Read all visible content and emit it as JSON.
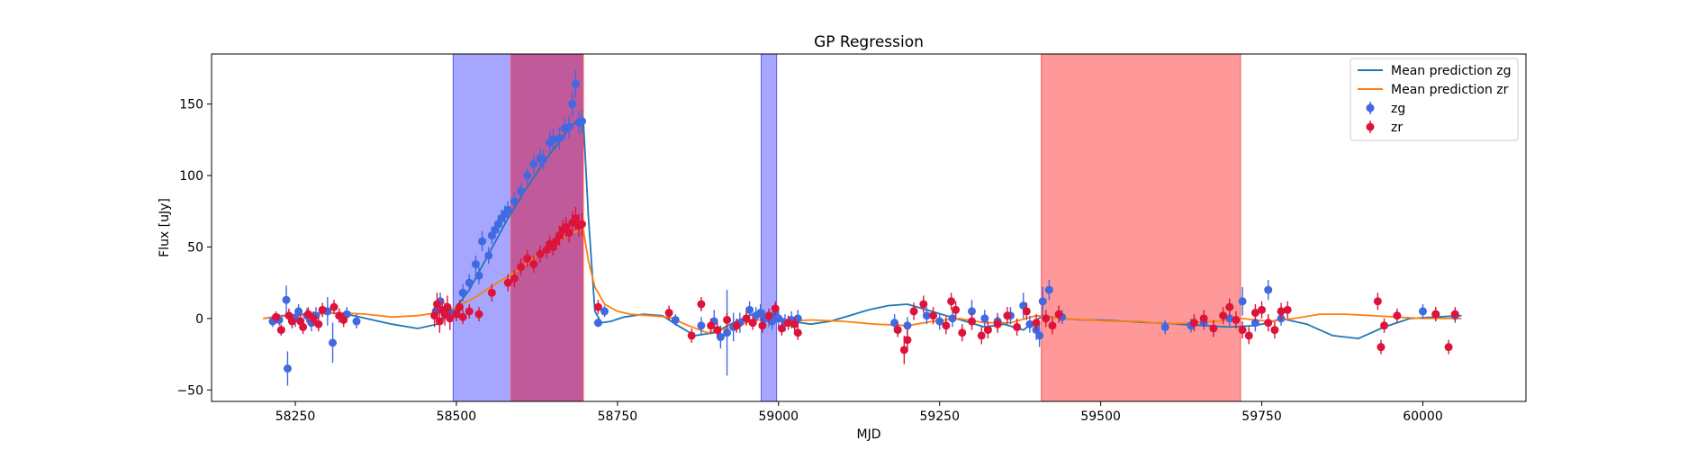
{
  "chart_data": {
    "type": "scatter",
    "title": "GP Regression",
    "xlabel": "MJD",
    "ylabel": "Flux [uJy]",
    "xlim": [
      58120,
      60160
    ],
    "ylim": [
      -58,
      185
    ],
    "xticks": [
      58250,
      58500,
      58750,
      59000,
      59250,
      59500,
      59750,
      60000
    ],
    "yticks": [
      -50,
      0,
      50,
      100,
      150
    ],
    "grid": false,
    "legend_position": "top-right",
    "legend": [
      "Mean prediction zg",
      "Mean prediction zr",
      "zg",
      "zr"
    ],
    "spans": [
      {
        "color": "blue",
        "x0": 58495,
        "x1": 58585
      },
      {
        "color": "red",
        "x0": 58585,
        "x1": 58697
      },
      {
        "color": "blue",
        "x0": 58973,
        "x1": 58997
      },
      {
        "color": "red",
        "x0": 59408,
        "x1": 59717
      }
    ],
    "series": [
      {
        "name": "Mean prediction zg",
        "kind": "line",
        "color": "#1f77b4",
        "x": [
          58200,
          58230,
          58260,
          58300,
          58330,
          58360,
          58400,
          58440,
          58470,
          58495,
          58520,
          58550,
          58580,
          58610,
          58640,
          58670,
          58690,
          58697,
          58705,
          58715,
          58725,
          58740,
          58760,
          58790,
          58820,
          58840,
          58870,
          58900,
          58930,
          58960,
          58990,
          59020,
          59050,
          59080,
          59110,
          59140,
          59170,
          59200,
          59230,
          59260,
          59290,
          59320,
          59350,
          59380,
          59410,
          59440,
          59470,
          59500,
          59540,
          59580,
          59620,
          59660,
          59700,
          59740,
          59760,
          59780,
          59820,
          59860,
          59900,
          59940,
          59980,
          60020,
          60060
        ],
        "y": [
          0,
          2,
          3,
          4,
          3,
          0,
          -4,
          -7,
          -4,
          5,
          20,
          45,
          70,
          92,
          112,
          130,
          140,
          138,
          70,
          5,
          -3,
          -2,
          1,
          3,
          2,
          -4,
          -12,
          -10,
          -3,
          3,
          2,
          -2,
          -4,
          -2,
          2,
          6,
          9,
          10,
          6,
          2,
          -2,
          -6,
          -4,
          -8,
          2,
          0,
          -1,
          -1,
          -2,
          -3,
          -4,
          -5,
          -6,
          -5,
          -3,
          0,
          -4,
          -12,
          -14,
          -6,
          0,
          1,
          2
        ]
      },
      {
        "name": "Mean prediction zr",
        "kind": "line",
        "color": "#ff7f0e",
        "x": [
          58200,
          58240,
          58280,
          58320,
          58360,
          58400,
          58440,
          58470,
          58500,
          58530,
          58560,
          58590,
          58620,
          58650,
          58680,
          58697,
          58705,
          58715,
          58730,
          58750,
          58770,
          58800,
          58830,
          58860,
          58890,
          58920,
          58950,
          58980,
          59010,
          59050,
          59100,
          59150,
          59200,
          59240,
          59280,
          59320,
          59360,
          59400,
          59440,
          59480,
          59520,
          59560,
          59600,
          59640,
          59680,
          59720,
          59760,
          59800,
          59840,
          59880,
          59920,
          59960,
          60000,
          60040,
          60060
        ],
        "y": [
          0,
          2,
          3,
          4,
          3,
          1,
          2,
          4,
          8,
          15,
          24,
          32,
          42,
          52,
          60,
          62,
          40,
          22,
          10,
          5,
          3,
          2,
          1,
          -5,
          -10,
          -7,
          -3,
          0,
          -2,
          -1,
          -2,
          -4,
          -5,
          -2,
          0,
          -3,
          -3,
          2,
          0,
          -1,
          -2,
          -2,
          -4,
          -3,
          -2,
          0,
          -2,
          0,
          3,
          3,
          2,
          1,
          0,
          0,
          0
        ]
      },
      {
        "name": "zg",
        "kind": "errorbar",
        "color": "#4169e1",
        "x": [
          58215,
          58225,
          58236,
          58238,
          58250,
          58255,
          58268,
          58275,
          58282,
          58300,
          58308,
          58330,
          58345,
          58468,
          58475,
          58490,
          58500,
          58510,
          58520,
          58530,
          58535,
          58540,
          58550,
          58555,
          58560,
          58565,
          58570,
          58575,
          58580,
          58590,
          58600,
          58610,
          58620,
          58630,
          58635,
          58645,
          58650,
          58660,
          58668,
          58675,
          58680,
          58685,
          58690,
          58695,
          58720,
          58730,
          58840,
          58880,
          58900,
          58910,
          58920,
          58930,
          58940,
          58955,
          58965,
          58972,
          58978,
          58985,
          58990,
          58995,
          59000,
          59010,
          59020,
          59030,
          59180,
          59200,
          59230,
          59250,
          59270,
          59300,
          59320,
          59340,
          59360,
          59380,
          59390,
          59400,
          59405,
          59410,
          59420,
          59440,
          59600,
          59640,
          59660,
          59700,
          59720,
          59740,
          59760,
          59780,
          60000,
          60020,
          60050
        ],
        "y": [
          -2,
          -1,
          13,
          -35,
          0,
          5,
          2,
          -3,
          2,
          5,
          -17,
          3,
          -2,
          5,
          12,
          4,
          3,
          18,
          25,
          38,
          30,
          54,
          44,
          58,
          62,
          66,
          70,
          73,
          76,
          82,
          89,
          100,
          108,
          112,
          111,
          123,
          125,
          126,
          133,
          134,
          150,
          164,
          137,
          138,
          -3,
          5,
          -1,
          -5,
          -2,
          -13,
          -10,
          -6,
          -3,
          6,
          2,
          4,
          0,
          0,
          -2,
          3,
          0,
          -3,
          -1,
          0,
          -3,
          -5,
          2,
          -2,
          0,
          5,
          0,
          -2,
          2,
          9,
          -4,
          -8,
          -12,
          12,
          20,
          1,
          -6,
          -5,
          -3,
          0,
          12,
          -3,
          20,
          0,
          5,
          3,
          2
        ],
        "err": [
          4,
          4,
          10,
          12,
          6,
          5,
          5,
          6,
          6,
          10,
          14,
          5,
          5,
          5,
          6,
          5,
          5,
          6,
          6,
          6,
          6,
          7,
          6,
          6,
          6,
          6,
          6,
          6,
          6,
          6,
          6,
          6,
          7,
          7,
          7,
          8,
          8,
          8,
          8,
          8,
          9,
          10,
          8,
          8,
          3,
          4,
          4,
          6,
          8,
          8,
          30,
          10,
          7,
          6,
          6,
          6,
          6,
          6,
          6,
          6,
          6,
          6,
          6,
          6,
          6,
          6,
          6,
          6,
          6,
          8,
          6,
          6,
          6,
          9,
          6,
          7,
          8,
          10,
          7,
          5,
          5,
          5,
          5,
          6,
          10,
          6,
          7,
          5,
          5,
          5,
          5
        ]
      },
      {
        "name": "zr",
        "kind": "errorbar",
        "color": "#dc143c",
        "x": [
          58220,
          58228,
          58240,
          58245,
          58258,
          58262,
          58270,
          58278,
          58286,
          58292,
          58310,
          58318,
          58325,
          58466,
          58470,
          58474,
          58478,
          58482,
          58486,
          58490,
          58500,
          58505,
          58510,
          58520,
          58535,
          58555,
          58580,
          58590,
          58600,
          58610,
          58620,
          58630,
          58640,
          58645,
          58650,
          58655,
          58660,
          58665,
          58670,
          58675,
          58680,
          58685,
          58690,
          58695,
          58720,
          58830,
          58865,
          58880,
          58895,
          58905,
          58920,
          58935,
          58950,
          58960,
          58975,
          58985,
          58995,
          59005,
          59015,
          59025,
          59030,
          59185,
          59195,
          59200,
          59210,
          59225,
          59240,
          59260,
          59268,
          59275,
          59285,
          59300,
          59315,
          59325,
          59340,
          59355,
          59370,
          59385,
          59400,
          59415,
          59425,
          59435,
          59645,
          59660,
          59675,
          59690,
          59700,
          59710,
          59720,
          59730,
          59740,
          59750,
          59760,
          59770,
          59780,
          59790,
          59930,
          59935,
          59940,
          59960,
          60020,
          60040,
          60050
        ],
        "y": [
          1,
          -8,
          2,
          -2,
          -2,
          -6,
          3,
          0,
          -4,
          6,
          8,
          2,
          -1,
          2,
          10,
          -2,
          6,
          3,
          8,
          0,
          3,
          8,
          1,
          5,
          3,
          18,
          25,
          28,
          36,
          42,
          38,
          45,
          48,
          52,
          50,
          54,
          58,
          62,
          64,
          60,
          67,
          70,
          65,
          66,
          8,
          4,
          -12,
          10,
          -5,
          -8,
          -1,
          -5,
          0,
          -3,
          -5,
          2,
          7,
          -7,
          -3,
          -4,
          -10,
          -8,
          -22,
          -15,
          5,
          10,
          2,
          -5,
          12,
          6,
          -10,
          -2,
          -12,
          -8,
          -4,
          2,
          -6,
          5,
          -3,
          0,
          -5,
          3,
          -3,
          0,
          -7,
          2,
          8,
          -1,
          -8,
          -12,
          4,
          6,
          -3,
          -8,
          5,
          6,
          12,
          -20,
          -5,
          2,
          3,
          -20,
          3
        ],
        "err": [
          4,
          4,
          5,
          5,
          5,
          5,
          5,
          5,
          5,
          5,
          5,
          5,
          5,
          8,
          8,
          8,
          8,
          8,
          8,
          8,
          5,
          5,
          5,
          5,
          5,
          6,
          6,
          6,
          6,
          6,
          6,
          6,
          6,
          6,
          6,
          6,
          7,
          7,
          7,
          7,
          8,
          8,
          8,
          8,
          5,
          5,
          5,
          5,
          5,
          5,
          5,
          5,
          5,
          5,
          5,
          5,
          5,
          5,
          5,
          5,
          5,
          5,
          10,
          8,
          6,
          6,
          6,
          6,
          6,
          6,
          6,
          6,
          6,
          6,
          6,
          6,
          6,
          6,
          6,
          6,
          6,
          6,
          6,
          6,
          6,
          6,
          6,
          6,
          6,
          6,
          6,
          6,
          6,
          6,
          6,
          6,
          6,
          5,
          5,
          5,
          5,
          5,
          5
        ]
      }
    ]
  }
}
